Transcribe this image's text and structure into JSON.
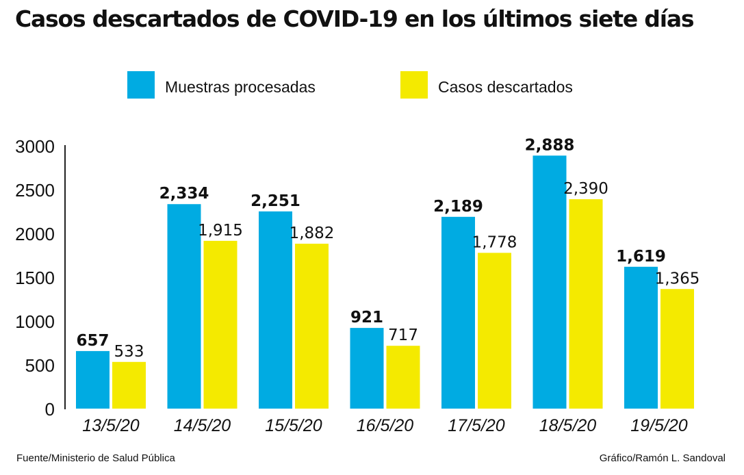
{
  "chart_data": {
    "type": "bar",
    "title": "Casos descartados de COVID-19 en los últimos siete días",
    "categories": [
      "13/5/20",
      "14/5/20",
      "15/5/20",
      "16/5/20",
      "17/5/20",
      "18/5/20",
      "19/5/20"
    ],
    "series": [
      {
        "name": "Muestras procesadas",
        "color": "#00abe2",
        "values": [
          657,
          2334,
          2251,
          921,
          2189,
          2888,
          1619
        ],
        "labels": [
          "657",
          "2,334",
          "2,251",
          "921",
          "2,189",
          "2,888",
          "1,619"
        ]
      },
      {
        "name": "Casos descartados",
        "color": "#f4ea00",
        "values": [
          533,
          1915,
          1882,
          717,
          1778,
          2390,
          1365
        ],
        "labels": [
          "533",
          "1,915",
          "1,882",
          "717",
          "1,778",
          "2,390",
          "1,365"
        ]
      }
    ],
    "yticks": [
      "0",
      "500",
      "1000",
      "1500",
      "2000",
      "2500",
      "3000"
    ],
    "ylim": [
      0,
      3000
    ],
    "grid": false,
    "legend": "top"
  },
  "footer": {
    "source": "Fuente/Ministerio  de Salud Pública",
    "credit": "Gráfico/Ramón L. Sandoval"
  }
}
